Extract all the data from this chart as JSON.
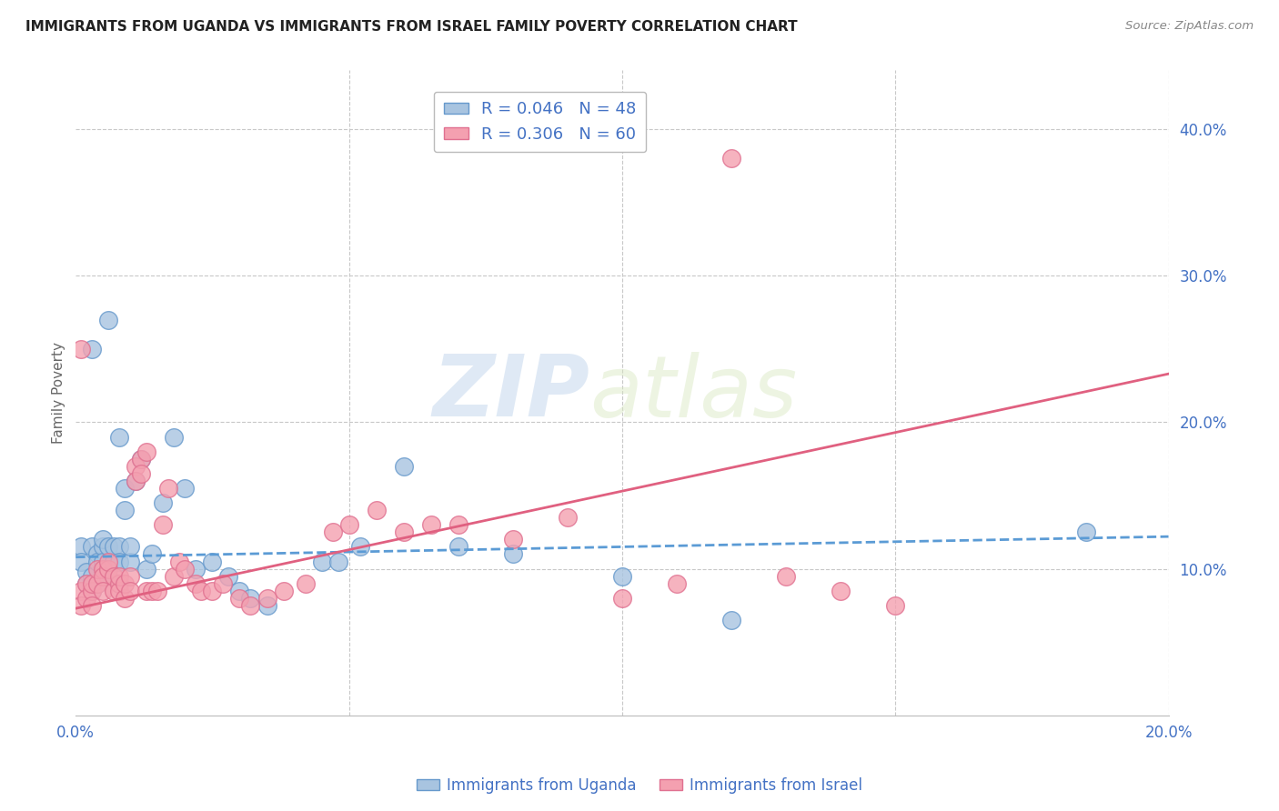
{
  "title": "IMMIGRANTS FROM UGANDA VS IMMIGRANTS FROM ISRAEL FAMILY POVERTY CORRELATION CHART",
  "source": "Source: ZipAtlas.com",
  "ylabel": "Family Poverty",
  "xlim": [
    0.0,
    0.2
  ],
  "ylim": [
    0.0,
    0.44
  ],
  "legend_r1": "R = 0.046",
  "legend_n1": "N = 48",
  "legend_r2": "R = 0.306",
  "legend_n2": "N = 60",
  "color_uganda": "#a8c4e0",
  "color_israel": "#f4a0b0",
  "color_uganda_edge": "#6699cc",
  "color_israel_edge": "#e07090",
  "color_text": "#4472c4",
  "background_color": "#ffffff",
  "grid_color": "#c8c8c8",
  "uganda_x": [
    0.001,
    0.001,
    0.002,
    0.002,
    0.003,
    0.003,
    0.003,
    0.004,
    0.004,
    0.004,
    0.005,
    0.005,
    0.005,
    0.006,
    0.006,
    0.006,
    0.007,
    0.007,
    0.008,
    0.008,
    0.008,
    0.009,
    0.009,
    0.01,
    0.01,
    0.011,
    0.012,
    0.013,
    0.014,
    0.016,
    0.018,
    0.02,
    0.022,
    0.025,
    0.028,
    0.03,
    0.032,
    0.035,
    0.045,
    0.048,
    0.052,
    0.06,
    0.07,
    0.08,
    0.1,
    0.12,
    0.185,
    0.003
  ],
  "uganda_y": [
    0.115,
    0.105,
    0.098,
    0.09,
    0.095,
    0.085,
    0.115,
    0.11,
    0.09,
    0.105,
    0.115,
    0.105,
    0.12,
    0.27,
    0.095,
    0.115,
    0.105,
    0.115,
    0.19,
    0.115,
    0.105,
    0.155,
    0.14,
    0.105,
    0.115,
    0.16,
    0.175,
    0.1,
    0.11,
    0.145,
    0.19,
    0.155,
    0.1,
    0.105,
    0.095,
    0.085,
    0.08,
    0.075,
    0.105,
    0.105,
    0.115,
    0.17,
    0.115,
    0.11,
    0.095,
    0.065,
    0.125,
    0.25
  ],
  "israel_x": [
    0.001,
    0.001,
    0.002,
    0.002,
    0.003,
    0.003,
    0.003,
    0.004,
    0.004,
    0.005,
    0.005,
    0.005,
    0.006,
    0.006,
    0.007,
    0.007,
    0.008,
    0.008,
    0.008,
    0.009,
    0.009,
    0.01,
    0.01,
    0.011,
    0.011,
    0.012,
    0.012,
    0.013,
    0.013,
    0.014,
    0.015,
    0.016,
    0.017,
    0.018,
    0.019,
    0.02,
    0.022,
    0.023,
    0.025,
    0.027,
    0.03,
    0.032,
    0.035,
    0.038,
    0.042,
    0.047,
    0.05,
    0.055,
    0.06,
    0.065,
    0.07,
    0.08,
    0.09,
    0.1,
    0.11,
    0.13,
    0.14,
    0.15,
    0.001,
    0.12
  ],
  "israel_y": [
    0.085,
    0.075,
    0.09,
    0.08,
    0.085,
    0.075,
    0.09,
    0.09,
    0.1,
    0.1,
    0.095,
    0.085,
    0.1,
    0.105,
    0.085,
    0.095,
    0.09,
    0.085,
    0.095,
    0.08,
    0.09,
    0.095,
    0.085,
    0.17,
    0.16,
    0.175,
    0.165,
    0.085,
    0.18,
    0.085,
    0.085,
    0.13,
    0.155,
    0.095,
    0.105,
    0.1,
    0.09,
    0.085,
    0.085,
    0.09,
    0.08,
    0.075,
    0.08,
    0.085,
    0.09,
    0.125,
    0.13,
    0.14,
    0.125,
    0.13,
    0.13,
    0.12,
    0.135,
    0.08,
    0.09,
    0.095,
    0.085,
    0.075,
    0.25,
    0.38
  ],
  "uganda_trend_x": [
    0.0,
    0.2
  ],
  "uganda_trend_y": [
    0.108,
    0.122
  ],
  "israel_trend_x": [
    0.0,
    0.2
  ],
  "israel_trend_y": [
    0.073,
    0.233
  ],
  "watermark_zip": "ZIP",
  "watermark_atlas": "atlas",
  "xtick_positions": [
    0.0,
    0.05,
    0.1,
    0.15,
    0.2
  ],
  "xtick_labels_show": [
    "0.0%",
    "",
    "",
    "",
    "20.0%"
  ],
  "ytick_positions": [
    0.1,
    0.2,
    0.3,
    0.4
  ],
  "ytick_labels": [
    "10.0%",
    "20.0%",
    "30.0%",
    "40.0%"
  ]
}
